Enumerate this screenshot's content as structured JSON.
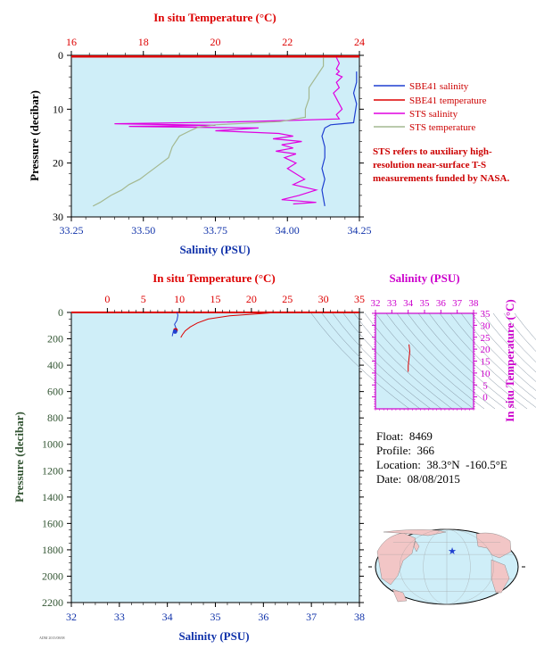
{
  "colors": {
    "plot_bg": "#cfeef8",
    "red": "#dd0000",
    "blue": "#1f3fd0",
    "magenta": "#e000e0",
    "green": "#a4b890",
    "axis_blue": "#1133aa",
    "axis_dark": "#335533",
    "land": "#f2c6c6",
    "ocean": "#cfeef8"
  },
  "chart_data": [
    {
      "type": "line",
      "title": "",
      "top_axis": {
        "label": "In situ Temperature (°C)",
        "range": [
          16,
          24
        ],
        "ticks": [
          "16",
          "18",
          "20",
          "22",
          "24"
        ]
      },
      "bottom_axis": {
        "label": "Salinity (PSU)",
        "range": [
          33.25,
          34.25
        ],
        "ticks": [
          "33.25",
          "33.50",
          "33.75",
          "34.00",
          "34.25"
        ]
      },
      "ylabel": "Pressure (decibar)",
      "ylim": [
        0,
        30
      ],
      "yticks": [
        "0",
        "10",
        "20",
        "30"
      ],
      "legend_position": "right",
      "series": [
        {
          "name": "SBE41 salinity",
          "color_key": "blue",
          "axis": "salinity",
          "points": [
            [
              34.24,
              3
            ],
            [
              34.24,
              5
            ],
            [
              34.23,
              7
            ],
            [
              34.24,
              9
            ],
            [
              34.23,
              12.5
            ],
            [
              34.15,
              12.9
            ],
            [
              34.13,
              13.5
            ],
            [
              34.12,
              15
            ],
            [
              34.13,
              17
            ],
            [
              34.13,
              19
            ],
            [
              34.12,
              21
            ],
            [
              34.13,
              23
            ],
            [
              34.12,
              25
            ],
            [
              34.13,
              28
            ]
          ]
        },
        {
          "name": "SBE41 temperature",
          "color_key": "red",
          "axis": "temperature",
          "points": [
            [
              16.0,
              0.2
            ],
            [
              24.0,
              0.2
            ]
          ]
        },
        {
          "name": "STS salinity",
          "color_key": "magenta",
          "axis": "salinity",
          "points": [
            [
              34.17,
              0.4
            ],
            [
              34.18,
              1.5
            ],
            [
              34.17,
              2.5
            ],
            [
              34.18,
              3
            ],
            [
              34.17,
              3.5
            ],
            [
              34.19,
              4
            ],
            [
              34.17,
              5
            ],
            [
              34.18,
              6
            ],
            [
              34.16,
              7
            ],
            [
              34.17,
              8
            ],
            [
              34.18,
              9
            ],
            [
              34.19,
              10
            ],
            [
              34.17,
              11
            ],
            [
              34.18,
              11.8
            ],
            [
              34.0,
              12.1
            ],
            [
              33.78,
              12.4
            ],
            [
              33.4,
              12.7
            ],
            [
              33.75,
              13.0
            ],
            [
              33.45,
              13.2
            ],
            [
              33.9,
              13.5
            ],
            [
              33.75,
              14.0
            ],
            [
              33.97,
              14.5
            ],
            [
              34.02,
              15.0
            ],
            [
              33.95,
              15.5
            ],
            [
              34.05,
              16
            ],
            [
              33.98,
              16.6
            ],
            [
              34.02,
              17.2
            ],
            [
              33.96,
              17.8
            ],
            [
              34.03,
              18.3
            ],
            [
              33.99,
              19
            ],
            [
              34.03,
              20
            ],
            [
              34.0,
              21
            ],
            [
              34.03,
              22
            ],
            [
              34.06,
              23
            ],
            [
              34.02,
              24
            ],
            [
              34.1,
              25
            ],
            [
              34.04,
              26
            ],
            [
              33.98,
              26.8
            ],
            [
              34.1,
              27.3
            ],
            [
              34.02,
              27.6
            ]
          ]
        },
        {
          "name": "STS temperature",
          "color_key": "green",
          "axis": "temperature",
          "points": [
            [
              23.0,
              0.4
            ],
            [
              23.0,
              2
            ],
            [
              22.8,
              4
            ],
            [
              22.6,
              6
            ],
            [
              22.6,
              8
            ],
            [
              22.5,
              10
            ],
            [
              22.5,
              11.5
            ],
            [
              21.8,
              12.3
            ],
            [
              20.0,
              12.9
            ],
            [
              19.5,
              13.4
            ],
            [
              19.3,
              14
            ],
            [
              19.0,
              15
            ],
            [
              18.8,
              17
            ],
            [
              18.7,
              19
            ],
            [
              18.5,
              20
            ],
            [
              18.3,
              21
            ],
            [
              18.1,
              22
            ],
            [
              17.9,
              23
            ],
            [
              17.6,
              24
            ],
            [
              17.4,
              25
            ],
            [
              17.1,
              26
            ],
            [
              16.8,
              27.3
            ],
            [
              16.6,
              28
            ]
          ]
        }
      ]
    },
    {
      "type": "line",
      "title": "",
      "top_axis": {
        "label": "In situ Temperature (°C)",
        "range": [
          -5,
          35
        ],
        "ticks": [
          "0",
          "5",
          "10",
          "15",
          "20",
          "25",
          "30",
          "35"
        ]
      },
      "bottom_axis": {
        "label": "Salinity (PSU)",
        "range": [
          32,
          38
        ],
        "ticks": [
          "32",
          "33",
          "34",
          "35",
          "36",
          "37",
          "38"
        ]
      },
      "ylabel": "Pressure (decibar)",
      "ylim": [
        0,
        2200
      ],
      "yticks": [
        "0",
        "200",
        "400",
        "600",
        "800",
        "1000",
        "1200",
        "1400",
        "1600",
        "1800",
        "2000",
        "2200"
      ],
      "series": [
        {
          "color_key": "blue",
          "axis": "salinity",
          "points": [
            [
              34.2,
              0
            ],
            [
              34.22,
              20
            ],
            [
              34.2,
              60
            ],
            [
              34.15,
              90
            ],
            [
              34.18,
              120
            ],
            [
              34.12,
              150
            ],
            [
              34.1,
              180
            ]
          ]
        },
        {
          "color_key": "red",
          "axis": "temperature",
          "points": [
            [
              23.5,
              0
            ],
            [
              21,
              10
            ],
            [
              17,
              25
            ],
            [
              14,
              50
            ],
            [
              12.5,
              80
            ],
            [
              11.5,
              110
            ],
            [
              10.8,
              140
            ],
            [
              10.4,
              170
            ],
            [
              10.2,
              190
            ]
          ]
        }
      ],
      "markers": [
        {
          "color_key": "red",
          "salinity": 34.17,
          "pressure": 135
        },
        {
          "color_key": "blue",
          "salinity": 34.16,
          "pressure": 145
        }
      ]
    },
    {
      "type": "scatter",
      "title": "",
      "top_axis": {
        "label": "Salinity (PSU)",
        "range": [
          32,
          38
        ],
        "ticks": [
          "32",
          "33",
          "34",
          "35",
          "36",
          "37",
          "38"
        ]
      },
      "right_axis": {
        "label": "In situ Temperature (°C)",
        "range": [
          -5,
          35
        ],
        "ticks": [
          "0",
          "5",
          "10",
          "15",
          "20",
          "25",
          "30",
          "35"
        ]
      },
      "series": [
        {
          "color_key": "red",
          "points": [
            [
              34.0,
              10.5
            ],
            [
              34.0,
              13
            ],
            [
              34.05,
              16
            ],
            [
              34.1,
              19
            ],
            [
              34.05,
              22
            ]
          ]
        }
      ]
    }
  ],
  "info": {
    "float": "Float:  8469",
    "profile": "Profile:  366",
    "location": "Location:  38.3°N  -160.5°E",
    "date": "Date:  08/08/2015"
  },
  "note": "STS refers to auxiliary high-resolution near-surface T-S measurements funded by NASA.",
  "footer_tiny": "ADM 2015/08/08 ",
  "map": {
    "marker_lon": -160.5,
    "marker_lat": 38.3,
    "marker_color": "#1f3fd0"
  }
}
